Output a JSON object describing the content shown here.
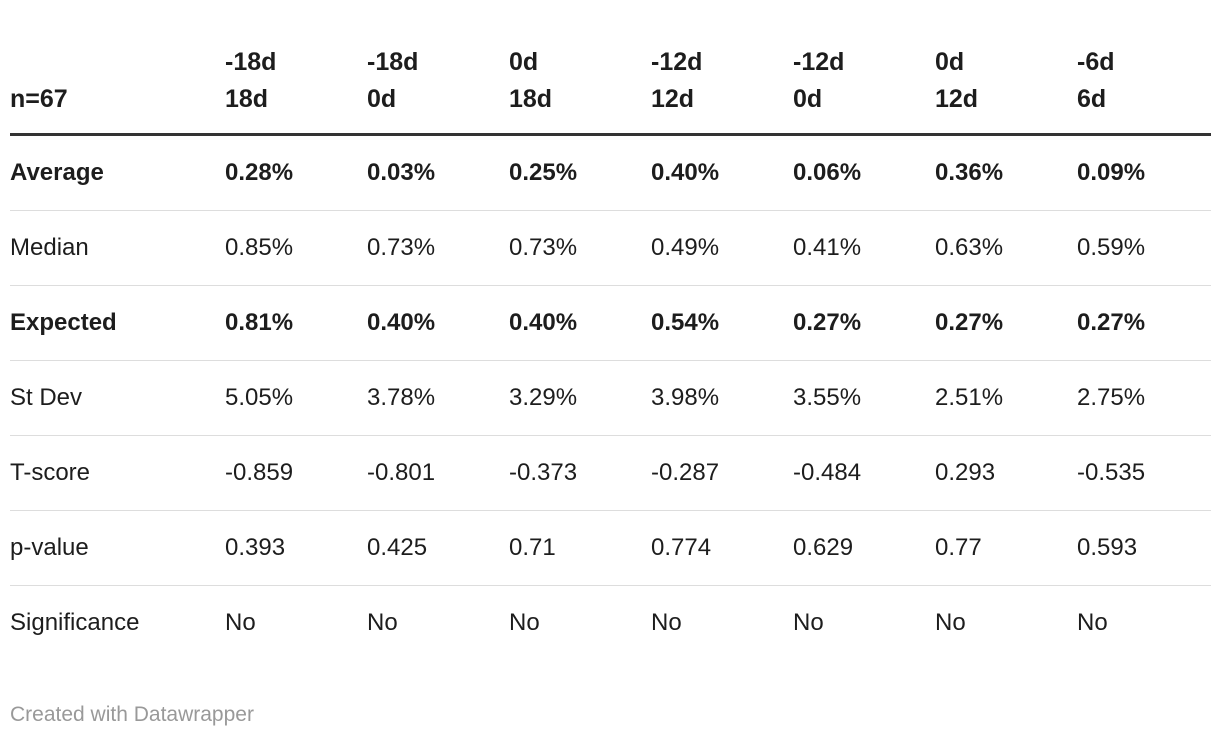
{
  "table": {
    "corner_label": "n=67",
    "columns": [
      {
        "line1": "-18d",
        "line2": "18d"
      },
      {
        "line1": "-18d",
        "line2": "0d"
      },
      {
        "line1": "0d",
        "line2": "18d"
      },
      {
        "line1": "-12d",
        "line2": "12d"
      },
      {
        "line1": "-12d",
        "line2": "0d"
      },
      {
        "line1": "0d",
        "line2": "12d"
      },
      {
        "line1": "-6d",
        "line2": "6d"
      }
    ],
    "rows": [
      {
        "label": "Average",
        "bold": true,
        "values": [
          "0.28%",
          "0.03%",
          "0.25%",
          "0.40%",
          "0.06%",
          "0.36%",
          "0.09%"
        ]
      },
      {
        "label": "Median",
        "bold": false,
        "values": [
          "0.85%",
          "0.73%",
          "0.73%",
          "0.49%",
          "0.41%",
          "0.63%",
          "0.59%"
        ]
      },
      {
        "label": "Expected",
        "bold": true,
        "values": [
          "0.81%",
          "0.40%",
          "0.40%",
          "0.54%",
          "0.27%",
          "0.27%",
          "0.27%"
        ]
      },
      {
        "label": "St Dev",
        "bold": false,
        "values": [
          "5.05%",
          "3.78%",
          "3.29%",
          "3.98%",
          "3.55%",
          "2.51%",
          "2.75%"
        ]
      },
      {
        "label": "T-score",
        "bold": false,
        "values": [
          "-0.859",
          "-0.801",
          "-0.373",
          "-0.287",
          "-0.484",
          "0.293",
          "-0.535"
        ]
      },
      {
        "label": "p-value",
        "bold": false,
        "values": [
          "0.393",
          "0.425",
          "0.71",
          "0.774",
          "0.629",
          "0.77",
          "0.593"
        ]
      },
      {
        "label": "Significance",
        "bold": false,
        "values": [
          "No",
          "No",
          "No",
          "No",
          "No",
          "No",
          "No"
        ]
      }
    ]
  },
  "footer": {
    "credit": "Created with Datawrapper"
  },
  "colors": {
    "text": "#1d1d1d",
    "header_rule": "#333333",
    "row_rule": "#dddddd",
    "credit_text": "#999999",
    "background": "#ffffff"
  },
  "chart_data": {
    "type": "table",
    "title": "n=67",
    "columns": [
      "-18d 18d",
      "-18d 0d",
      "0d 18d",
      "-12d 12d",
      "-12d 0d",
      "0d 12d",
      "-6d 6d"
    ],
    "row_labels": [
      "Average",
      "Median",
      "Expected",
      "St Dev",
      "T-score",
      "p-value",
      "Significance"
    ],
    "cells": [
      [
        "0.28%",
        "0.03%",
        "0.25%",
        "0.40%",
        "0.06%",
        "0.36%",
        "0.09%"
      ],
      [
        "0.85%",
        "0.73%",
        "0.73%",
        "0.49%",
        "0.41%",
        "0.63%",
        "0.59%"
      ],
      [
        "0.81%",
        "0.40%",
        "0.40%",
        "0.54%",
        "0.27%",
        "0.27%",
        "0.27%"
      ],
      [
        "5.05%",
        "3.78%",
        "3.29%",
        "3.98%",
        "3.55%",
        "2.51%",
        "2.75%"
      ],
      [
        -0.859,
        -0.801,
        -0.373,
        -0.287,
        -0.484,
        0.293,
        -0.535
      ],
      [
        0.393,
        0.425,
        0.71,
        0.774,
        0.629,
        0.77,
        0.593
      ],
      [
        "No",
        "No",
        "No",
        "No",
        "No",
        "No",
        "No"
      ]
    ],
    "bold_rows": [
      "Average",
      "Expected"
    ],
    "credit": "Created with Datawrapper"
  }
}
